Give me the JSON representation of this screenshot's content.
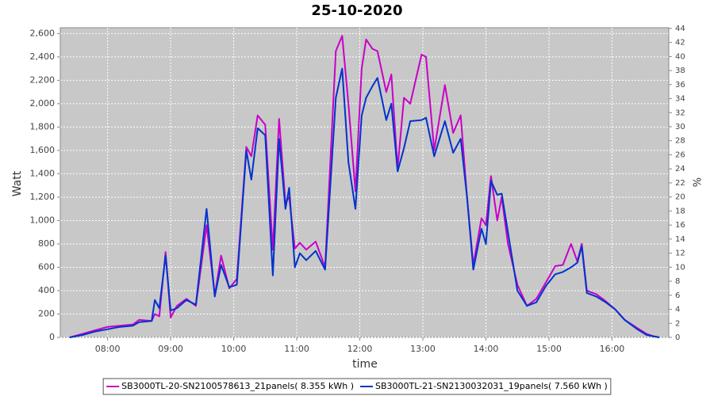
{
  "chart_data": {
    "type": "line",
    "title": "25-10-2020",
    "x_label": "time",
    "y_label": "Watt",
    "y2_label": "%",
    "x": [
      7.4,
      7.6,
      7.8,
      8.0,
      8.2,
      8.4,
      8.5,
      8.7,
      8.75,
      8.82,
      8.92,
      9.0,
      9.1,
      9.25,
      9.4,
      9.57,
      9.7,
      9.8,
      9.93,
      10.05,
      10.2,
      10.28,
      10.38,
      10.5,
      10.62,
      10.72,
      10.82,
      10.88,
      10.97,
      11.05,
      11.15,
      11.3,
      11.45,
      11.62,
      11.72,
      11.82,
      11.93,
      12.03,
      12.1,
      12.2,
      12.28,
      12.42,
      12.5,
      12.6,
      12.7,
      12.8,
      12.98,
      13.05,
      13.18,
      13.35,
      13.48,
      13.6,
      13.7,
      13.8,
      13.93,
      14.0,
      14.08,
      14.18,
      14.25,
      14.35,
      14.5,
      14.65,
      14.8,
      14.95,
      15.1,
      15.22,
      15.35,
      15.45,
      15.52,
      15.6,
      15.75,
      15.9,
      16.05,
      16.2,
      16.4,
      16.55,
      16.65,
      16.75
    ],
    "series": [
      {
        "name": "SB3000TL-20-SN2100578613_21panels( 8.355 kWh )",
        "color": "#c800c8",
        "values": [
          0,
          30,
          60,
          90,
          100,
          110,
          150,
          140,
          200,
          180,
          730,
          170,
          270,
          330,
          270,
          960,
          360,
          700,
          420,
          500,
          1630,
          1550,
          1900,
          1820,
          750,
          1870,
          1150,
          1200,
          760,
          810,
          750,
          820,
          600,
          2450,
          2580,
          2000,
          1250,
          2300,
          2550,
          2470,
          2450,
          2100,
          2250,
          1450,
          2050,
          2000,
          2420,
          2400,
          1600,
          2160,
          1750,
          1900,
          1200,
          620,
          1020,
          960,
          1380,
          1000,
          1200,
          800,
          450,
          270,
          330,
          470,
          610,
          620,
          800,
          650,
          800,
          400,
          370,
          310,
          240,
          150,
          80,
          30,
          10,
          0
        ]
      },
      {
        "name": "SB3000TL-21-SN2130032031_19panels( 7.560 kWh )",
        "color": "#0033cc",
        "values": [
          0,
          20,
          50,
          70,
          90,
          100,
          130,
          140,
          320,
          250,
          700,
          230,
          250,
          320,
          280,
          1100,
          350,
          620,
          430,
          450,
          1600,
          1350,
          1790,
          1730,
          530,
          1700,
          1100,
          1280,
          600,
          720,
          660,
          740,
          580,
          2050,
          2300,
          1500,
          1100,
          1900,
          2050,
          2150,
          2220,
          1860,
          2000,
          1420,
          1620,
          1850,
          1860,
          1880,
          1550,
          1850,
          1580,
          1700,
          1200,
          580,
          930,
          800,
          1340,
          1220,
          1230,
          900,
          400,
          270,
          300,
          440,
          540,
          560,
          600,
          640,
          780,
          380,
          350,
          300,
          240,
          150,
          70,
          20,
          10,
          0
        ]
      }
    ],
    "xlim": [
      7.25,
      16.9
    ],
    "xticks": [
      {
        "value": 8,
        "label": "08:00"
      },
      {
        "value": 9,
        "label": "09:00"
      },
      {
        "value": 10,
        "label": "10:00"
      },
      {
        "value": 11,
        "label": "11:00"
      },
      {
        "value": 12,
        "label": "12:00"
      },
      {
        "value": 13,
        "label": "13:00"
      },
      {
        "value": 14,
        "label": "14:00"
      },
      {
        "value": 15,
        "label": "15:00"
      },
      {
        "value": 16,
        "label": "16:00"
      }
    ],
    "ylim": [
      0,
      2650
    ],
    "yticks": [
      0,
      200,
      400,
      600,
      800,
      {
        "value": 1000,
        "label": "1,000"
      },
      {
        "value": 1200,
        "label": "1,200"
      },
      {
        "value": 1400,
        "label": "1,400"
      },
      {
        "value": 1600,
        "label": "1,600"
      },
      {
        "value": 1800,
        "label": "1,800"
      },
      {
        "value": 2000,
        "label": "2,000"
      },
      {
        "value": 2200,
        "label": "2,200"
      },
      {
        "value": 2400,
        "label": "2,400"
      },
      {
        "value": 2600,
        "label": "2,600"
      }
    ],
    "y2lim": [
      0,
      44.1
    ],
    "y2ticks": [
      0,
      2,
      4,
      6,
      8,
      10,
      12,
      14,
      16,
      18,
      20,
      22,
      24,
      26,
      28,
      30,
      32,
      34,
      36,
      38,
      40,
      42,
      44
    ],
    "grid": true,
    "legend": "bottom"
  }
}
